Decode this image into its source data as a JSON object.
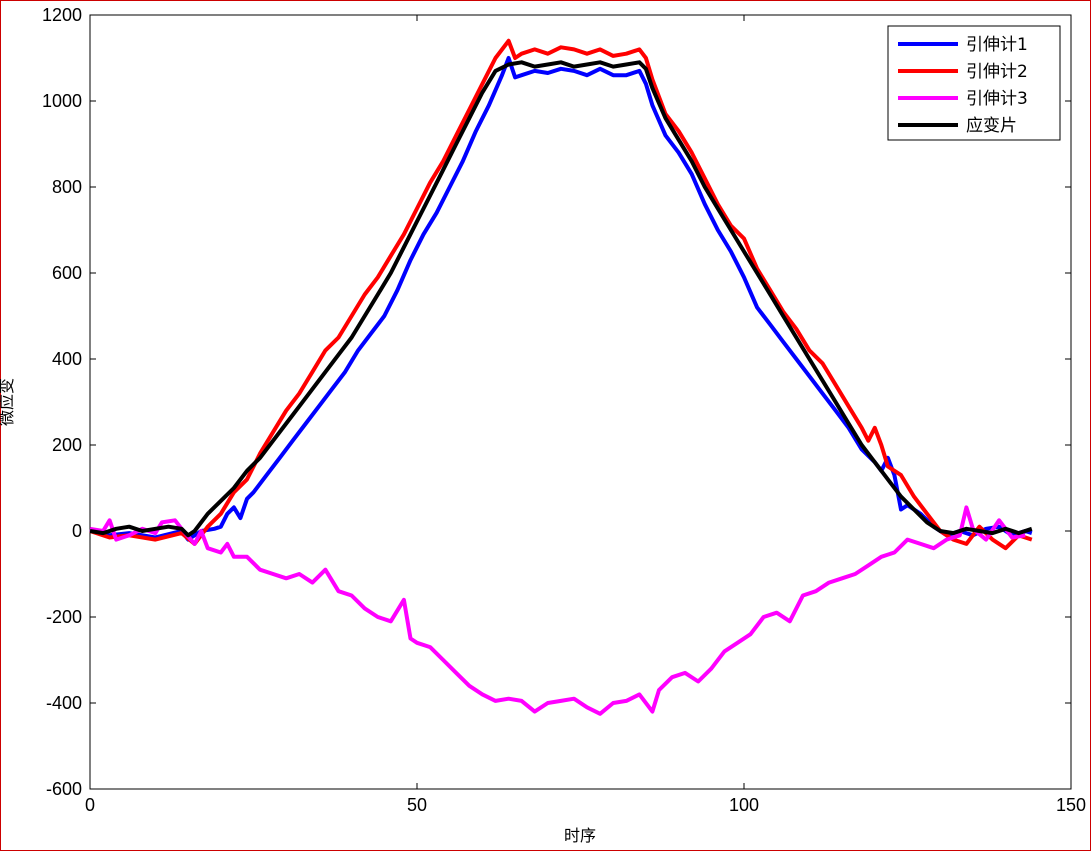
{
  "chart_data": {
    "type": "line",
    "xlabel": "时序",
    "ylabel": "微应变",
    "xlim": [
      0,
      150
    ],
    "ylim": [
      -600,
      1200
    ],
    "x_ticks": [
      "0",
      "50",
      "100",
      "150"
    ],
    "y_ticks": [
      "-600",
      "-400",
      "-200",
      "0",
      "200",
      "400",
      "600",
      "800",
      "1000",
      "1200"
    ],
    "legend_position": "top-right",
    "series": [
      {
        "name": "引伸计1",
        "color": "#0000ff",
        "points": [
          [
            0,
            2
          ],
          [
            3,
            -10
          ],
          [
            6,
            -5
          ],
          [
            10,
            -15
          ],
          [
            14,
            0
          ],
          [
            15,
            -20
          ],
          [
            17,
            0
          ],
          [
            19,
            5
          ],
          [
            20,
            10
          ],
          [
            21,
            40
          ],
          [
            22,
            55
          ],
          [
            23,
            30
          ],
          [
            24,
            75
          ],
          [
            25,
            90
          ],
          [
            27,
            130
          ],
          [
            29,
            170
          ],
          [
            31,
            210
          ],
          [
            33,
            250
          ],
          [
            35,
            290
          ],
          [
            37,
            330
          ],
          [
            39,
            370
          ],
          [
            41,
            420
          ],
          [
            43,
            460
          ],
          [
            45,
            500
          ],
          [
            47,
            560
          ],
          [
            49,
            630
          ],
          [
            51,
            690
          ],
          [
            53,
            740
          ],
          [
            55,
            800
          ],
          [
            57,
            860
          ],
          [
            59,
            930
          ],
          [
            61,
            990
          ],
          [
            63,
            1060
          ],
          [
            64,
            1100
          ],
          [
            65,
            1055
          ],
          [
            66,
            1060
          ],
          [
            68,
            1070
          ],
          [
            70,
            1065
          ],
          [
            72,
            1075
          ],
          [
            74,
            1070
          ],
          [
            76,
            1060
          ],
          [
            78,
            1075
          ],
          [
            80,
            1060
          ],
          [
            82,
            1060
          ],
          [
            84,
            1070
          ],
          [
            85,
            1040
          ],
          [
            86,
            990
          ],
          [
            88,
            920
          ],
          [
            90,
            880
          ],
          [
            92,
            830
          ],
          [
            94,
            760
          ],
          [
            96,
            700
          ],
          [
            98,
            650
          ],
          [
            100,
            590
          ],
          [
            102,
            520
          ],
          [
            104,
            480
          ],
          [
            106,
            440
          ],
          [
            108,
            400
          ],
          [
            110,
            360
          ],
          [
            112,
            320
          ],
          [
            114,
            280
          ],
          [
            116,
            240
          ],
          [
            118,
            190
          ],
          [
            120,
            160
          ],
          [
            121,
            140
          ],
          [
            122,
            170
          ],
          [
            123,
            130
          ],
          [
            124,
            50
          ],
          [
            125,
            60
          ],
          [
            127,
            40
          ],
          [
            129,
            10
          ],
          [
            131,
            -10
          ],
          [
            133,
            0
          ],
          [
            135,
            -10
          ],
          [
            137,
            5
          ],
          [
            139,
            10
          ],
          [
            141,
            -10
          ],
          [
            143,
            0
          ],
          [
            144,
            -5
          ]
        ]
      },
      {
        "name": "引伸计2",
        "color": "#ff0000",
        "points": [
          [
            0,
            0
          ],
          [
            3,
            -15
          ],
          [
            6,
            -10
          ],
          [
            10,
            -20
          ],
          [
            14,
            -5
          ],
          [
            16,
            -30
          ],
          [
            18,
            10
          ],
          [
            20,
            40
          ],
          [
            22,
            90
          ],
          [
            24,
            120
          ],
          [
            26,
            180
          ],
          [
            28,
            230
          ],
          [
            30,
            280
          ],
          [
            32,
            320
          ],
          [
            34,
            370
          ],
          [
            36,
            420
          ],
          [
            38,
            450
          ],
          [
            40,
            500
          ],
          [
            42,
            550
          ],
          [
            44,
            590
          ],
          [
            46,
            640
          ],
          [
            48,
            690
          ],
          [
            50,
            750
          ],
          [
            52,
            810
          ],
          [
            54,
            860
          ],
          [
            56,
            920
          ],
          [
            58,
            980
          ],
          [
            60,
            1040
          ],
          [
            62,
            1100
          ],
          [
            64,
            1140
          ],
          [
            65,
            1100
          ],
          [
            66,
            1110
          ],
          [
            68,
            1120
          ],
          [
            70,
            1110
          ],
          [
            72,
            1125
          ],
          [
            74,
            1120
          ],
          [
            76,
            1110
          ],
          [
            78,
            1120
          ],
          [
            80,
            1105
          ],
          [
            82,
            1110
          ],
          [
            84,
            1120
          ],
          [
            85,
            1100
          ],
          [
            86,
            1050
          ],
          [
            88,
            970
          ],
          [
            90,
            930
          ],
          [
            92,
            880
          ],
          [
            94,
            820
          ],
          [
            96,
            760
          ],
          [
            98,
            710
          ],
          [
            100,
            680
          ],
          [
            102,
            610
          ],
          [
            104,
            560
          ],
          [
            106,
            510
          ],
          [
            108,
            470
          ],
          [
            110,
            420
          ],
          [
            112,
            390
          ],
          [
            114,
            340
          ],
          [
            116,
            290
          ],
          [
            118,
            240
          ],
          [
            119,
            210
          ],
          [
            120,
            240
          ],
          [
            121,
            200
          ],
          [
            122,
            150
          ],
          [
            124,
            130
          ],
          [
            126,
            80
          ],
          [
            128,
            40
          ],
          [
            130,
            0
          ],
          [
            132,
            -20
          ],
          [
            134,
            -30
          ],
          [
            136,
            10
          ],
          [
            138,
            -20
          ],
          [
            140,
            -40
          ],
          [
            142,
            -10
          ],
          [
            144,
            -20
          ]
        ]
      },
      {
        "name": "引伸计3",
        "color": "#ff00ff",
        "points": [
          [
            0,
            5
          ],
          [
            2,
            0
          ],
          [
            3,
            25
          ],
          [
            4,
            -20
          ],
          [
            6,
            -10
          ],
          [
            8,
            5
          ],
          [
            10,
            -5
          ],
          [
            11,
            20
          ],
          [
            13,
            25
          ],
          [
            14,
            5
          ],
          [
            16,
            -30
          ],
          [
            17,
            0
          ],
          [
            18,
            -40
          ],
          [
            20,
            -50
          ],
          [
            21,
            -30
          ],
          [
            22,
            -60
          ],
          [
            24,
            -60
          ],
          [
            26,
            -90
          ],
          [
            28,
            -100
          ],
          [
            30,
            -110
          ],
          [
            32,
            -100
          ],
          [
            34,
            -120
          ],
          [
            36,
            -90
          ],
          [
            38,
            -140
          ],
          [
            40,
            -150
          ],
          [
            42,
            -180
          ],
          [
            44,
            -200
          ],
          [
            46,
            -210
          ],
          [
            48,
            -160
          ],
          [
            49,
            -250
          ],
          [
            50,
            -260
          ],
          [
            52,
            -270
          ],
          [
            54,
            -300
          ],
          [
            56,
            -330
          ],
          [
            58,
            -360
          ],
          [
            60,
            -380
          ],
          [
            62,
            -395
          ],
          [
            64,
            -390
          ],
          [
            66,
            -395
          ],
          [
            68,
            -420
          ],
          [
            70,
            -400
          ],
          [
            72,
            -395
          ],
          [
            74,
            -390
          ],
          [
            76,
            -410
          ],
          [
            78,
            -425
          ],
          [
            80,
            -400
          ],
          [
            82,
            -395
          ],
          [
            84,
            -380
          ],
          [
            86,
            -420
          ],
          [
            87,
            -370
          ],
          [
            89,
            -340
          ],
          [
            91,
            -330
          ],
          [
            93,
            -350
          ],
          [
            95,
            -320
          ],
          [
            97,
            -280
          ],
          [
            99,
            -260
          ],
          [
            101,
            -240
          ],
          [
            103,
            -200
          ],
          [
            105,
            -190
          ],
          [
            107,
            -210
          ],
          [
            109,
            -150
          ],
          [
            111,
            -140
          ],
          [
            113,
            -120
          ],
          [
            115,
            -110
          ],
          [
            117,
            -100
          ],
          [
            119,
            -80
          ],
          [
            121,
            -60
          ],
          [
            123,
            -50
          ],
          [
            125,
            -20
          ],
          [
            127,
            -30
          ],
          [
            129,
            -40
          ],
          [
            131,
            -20
          ],
          [
            133,
            -10
          ],
          [
            134,
            55
          ],
          [
            135,
            5
          ],
          [
            137,
            -20
          ],
          [
            139,
            25
          ],
          [
            141,
            -15
          ],
          [
            143,
            -10
          ]
        ]
      },
      {
        "name": "应变片",
        "color": "#000000",
        "points": [
          [
            0,
            0
          ],
          [
            2,
            -5
          ],
          [
            4,
            5
          ],
          [
            6,
            10
          ],
          [
            8,
            0
          ],
          [
            10,
            5
          ],
          [
            12,
            10
          ],
          [
            14,
            5
          ],
          [
            15,
            -10
          ],
          [
            16,
            0
          ],
          [
            18,
            40
          ],
          [
            20,
            70
          ],
          [
            22,
            100
          ],
          [
            24,
            140
          ],
          [
            26,
            170
          ],
          [
            28,
            210
          ],
          [
            30,
            250
          ],
          [
            32,
            290
          ],
          [
            34,
            330
          ],
          [
            36,
            370
          ],
          [
            38,
            410
          ],
          [
            40,
            450
          ],
          [
            42,
            500
          ],
          [
            44,
            550
          ],
          [
            46,
            600
          ],
          [
            48,
            660
          ],
          [
            50,
            720
          ],
          [
            52,
            780
          ],
          [
            54,
            840
          ],
          [
            56,
            900
          ],
          [
            58,
            960
          ],
          [
            60,
            1020
          ],
          [
            62,
            1070
          ],
          [
            64,
            1085
          ],
          [
            66,
            1090
          ],
          [
            68,
            1080
          ],
          [
            70,
            1085
          ],
          [
            72,
            1090
          ],
          [
            74,
            1080
          ],
          [
            76,
            1085
          ],
          [
            78,
            1090
          ],
          [
            80,
            1080
          ],
          [
            82,
            1085
          ],
          [
            84,
            1090
          ],
          [
            85,
            1075
          ],
          [
            86,
            1030
          ],
          [
            88,
            960
          ],
          [
            90,
            910
          ],
          [
            92,
            860
          ],
          [
            94,
            800
          ],
          [
            96,
            750
          ],
          [
            98,
            700
          ],
          [
            100,
            650
          ],
          [
            102,
            600
          ],
          [
            104,
            550
          ],
          [
            106,
            500
          ],
          [
            108,
            450
          ],
          [
            110,
            400
          ],
          [
            112,
            350
          ],
          [
            114,
            300
          ],
          [
            116,
            250
          ],
          [
            118,
            200
          ],
          [
            120,
            160
          ],
          [
            122,
            120
          ],
          [
            124,
            80
          ],
          [
            126,
            50
          ],
          [
            128,
            20
          ],
          [
            130,
            0
          ],
          [
            132,
            -5
          ],
          [
            134,
            5
          ],
          [
            136,
            0
          ],
          [
            138,
            -5
          ],
          [
            140,
            5
          ],
          [
            142,
            -5
          ],
          [
            144,
            5
          ]
        ]
      }
    ]
  }
}
